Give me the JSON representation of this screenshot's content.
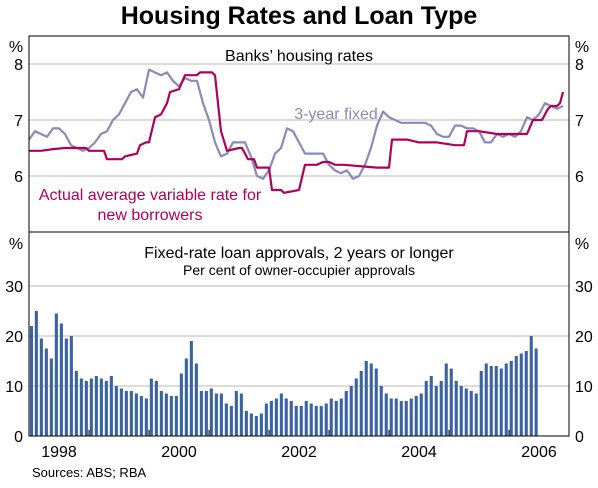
{
  "title": "Housing Rates and Loan Type",
  "sources": "Sources: ABS; RBA",
  "colors": {
    "fixed": "#8a8ab8",
    "variable": "#b0005a",
    "bars": "#3a64a0",
    "frame": "#000000",
    "grid": "#b8b8b8"
  },
  "chart_data": [
    {
      "type": "line",
      "title": "Banks’ housing rates",
      "ylabel": "%",
      "ylim": [
        5,
        8.5
      ],
      "yticks": [
        6,
        7,
        8
      ],
      "xlim": [
        1997.5,
        2006.5
      ],
      "grid": true,
      "series": [
        {
          "name": "3-year fixed",
          "color": "#8a8ab8",
          "x": [
            1997.5,
            1997.6,
            1997.7,
            1997.8,
            1997.9,
            1998.0,
            1998.1,
            1998.2,
            1998.3,
            1998.4,
            1998.5,
            1998.6,
            1998.7,
            1998.8,
            1998.9,
            1999.0,
            1999.1,
            1999.2,
            1999.3,
            1999.4,
            1999.5,
            1999.6,
            1999.7,
            1999.8,
            1999.9,
            2000.0,
            2000.1,
            2000.2,
            2000.3,
            2000.4,
            2000.5,
            2000.6,
            2000.7,
            2000.8,
            2000.9,
            2001.0,
            2001.1,
            2001.2,
            2001.3,
            2001.4,
            2001.5,
            2001.6,
            2001.7,
            2001.8,
            2001.9,
            2002.0,
            2002.1,
            2002.2,
            2002.3,
            2002.4,
            2002.5,
            2002.6,
            2002.7,
            2002.8,
            2002.9,
            2003.0,
            2003.1,
            2003.2,
            2003.3,
            2003.4,
            2003.5,
            2003.6,
            2003.7,
            2003.8,
            2003.9,
            2004.0,
            2004.1,
            2004.2,
            2004.3,
            2004.4,
            2004.5,
            2004.6,
            2004.7,
            2004.8,
            2004.9,
            2005.0,
            2005.1,
            2005.2,
            2005.3,
            2005.4,
            2005.5,
            2005.6,
            2005.7,
            2005.8,
            2005.9,
            2006.0,
            2006.1,
            2006.2,
            2006.3,
            2006.4
          ],
          "y": [
            6.65,
            6.8,
            6.75,
            6.7,
            6.85,
            6.85,
            6.75,
            6.55,
            6.5,
            6.45,
            6.5,
            6.6,
            6.75,
            6.8,
            7.0,
            7.1,
            7.3,
            7.5,
            7.55,
            7.4,
            7.9,
            7.85,
            7.8,
            7.85,
            7.7,
            7.6,
            7.75,
            7.7,
            7.7,
            7.3,
            7.0,
            6.6,
            6.35,
            6.4,
            6.6,
            6.6,
            6.6,
            6.35,
            6.0,
            5.95,
            6.1,
            6.4,
            6.5,
            6.85,
            6.8,
            6.6,
            6.4,
            6.4,
            6.4,
            6.4,
            6.2,
            6.1,
            6.05,
            6.1,
            5.95,
            6.0,
            6.2,
            6.5,
            6.9,
            7.15,
            7.05,
            7.0,
            6.95,
            6.95,
            6.95,
            6.95,
            6.95,
            6.9,
            6.75,
            6.7,
            6.7,
            6.9,
            6.9,
            6.85,
            6.85,
            6.8,
            6.6,
            6.6,
            6.75,
            6.7,
            6.75,
            6.7,
            6.8,
            7.05,
            7.0,
            7.1,
            7.3,
            7.25,
            7.2,
            7.25
          ]
        },
        {
          "name": "Actual average variable rate for new borrowers",
          "color": "#b0005a",
          "x": [
            1997.5,
            1997.7,
            1997.9,
            1998.1,
            1998.3,
            1998.45,
            1998.5,
            1998.75,
            1998.8,
            1999.05,
            1999.1,
            1999.3,
            1999.35,
            1999.45,
            1999.5,
            1999.6,
            1999.7,
            1999.8,
            1999.85,
            2000.0,
            2000.1,
            2000.3,
            2000.35,
            2000.55,
            2000.6,
            2000.7,
            2000.8,
            2001.0,
            2001.05,
            2001.15,
            2001.25,
            2001.3,
            2001.5,
            2001.55,
            2001.7,
            2001.75,
            2002.0,
            2002.1,
            2002.3,
            2002.4,
            2002.5,
            2002.6,
            2002.75,
            2003.3,
            2003.4,
            2003.5,
            2003.55,
            2003.8,
            2004.0,
            2004.3,
            2004.6,
            2004.75,
            2004.8,
            2005.0,
            2005.3,
            2005.4,
            2005.6,
            2005.8,
            2005.9,
            2006.0,
            2006.05,
            2006.15,
            2006.2,
            2006.3,
            2006.35,
            2006.4
          ],
          "y": [
            6.45,
            6.45,
            6.48,
            6.5,
            6.5,
            6.5,
            6.45,
            6.45,
            6.3,
            6.3,
            6.35,
            6.4,
            6.55,
            6.6,
            6.6,
            7.05,
            7.1,
            7.3,
            7.5,
            7.55,
            7.8,
            7.8,
            7.85,
            7.85,
            7.8,
            6.8,
            6.45,
            6.5,
            6.5,
            6.3,
            6.3,
            6.15,
            6.15,
            5.75,
            5.75,
            5.7,
            5.75,
            6.2,
            6.2,
            6.25,
            6.25,
            6.2,
            6.2,
            6.15,
            6.15,
            6.15,
            6.65,
            6.65,
            6.6,
            6.6,
            6.55,
            6.55,
            6.8,
            6.8,
            6.75,
            6.75,
            6.75,
            6.75,
            7.0,
            7.0,
            7.0,
            7.2,
            7.25,
            7.25,
            7.3,
            7.5
          ]
        }
      ]
    },
    {
      "type": "bar",
      "title": "Fixed-rate loan approvals, 2 years or longer",
      "subtitle": "Per cent of owner-occupier approvals",
      "ylabel": "%",
      "ylim": [
        0,
        30
      ],
      "yticks": [
        0,
        10,
        20,
        30
      ],
      "xlim": [
        1997.5,
        2006.5
      ],
      "xticks": [
        "1998",
        "2000",
        "2002",
        "2004",
        "2006"
      ],
      "xtick_positions": [
        1998,
        2000,
        2002,
        2004,
        2006
      ],
      "grid": true,
      "x_start": 1997.54,
      "x_step": 0.0833,
      "values": [
        22,
        25,
        19.5,
        17.5,
        15.5,
        24.5,
        22.5,
        19.5,
        20,
        13,
        11.5,
        11,
        11.5,
        12,
        11.5,
        11,
        12,
        10,
        9.5,
        9,
        9,
        8.5,
        8,
        7.5,
        11.5,
        11,
        9,
        8.5,
        8,
        8,
        12.5,
        15.5,
        19,
        14.5,
        9,
        9,
        9.5,
        8.5,
        8.5,
        6.5,
        6,
        9,
        8.5,
        5,
        4.5,
        4,
        4.5,
        6.5,
        7,
        7.5,
        8.5,
        7.5,
        7,
        6,
        6,
        7,
        6.5,
        6,
        6,
        6.5,
        7.5,
        7,
        7.5,
        9,
        10,
        11.5,
        13,
        15,
        14.5,
        13.5,
        10,
        8.5,
        7.5,
        7.5,
        7,
        7,
        7.5,
        8,
        8.5,
        11,
        12,
        10,
        11,
        14.5,
        13.5,
        11,
        10,
        9.5,
        9,
        8.5,
        13,
        14.5,
        14,
        14,
        13.5,
        14.5,
        15,
        16,
        16.5,
        17,
        20,
        17.5
      ]
    }
  ]
}
